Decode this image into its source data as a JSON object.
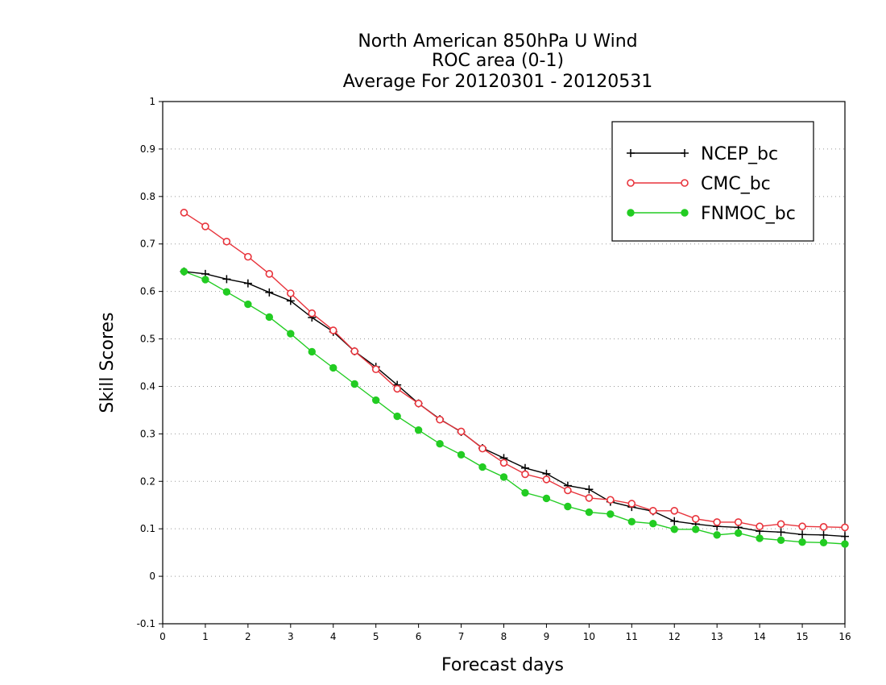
{
  "chart_data": {
    "type": "line",
    "title": [
      "North American 850hPa U Wind",
      "ROC area (0-1)",
      "Average For 20120301 - 20120531"
    ],
    "xlabel": "Forecast days",
    "ylabel": "Skill Scores",
    "xlim": [
      0,
      16
    ],
    "ylim": [
      -0.1,
      1
    ],
    "x_ticks": [
      0,
      1,
      2,
      3,
      4,
      5,
      6,
      7,
      8,
      9,
      10,
      11,
      12,
      13,
      14,
      15,
      16
    ],
    "y_ticks": [
      -0.1,
      0,
      0.1,
      0.2,
      0.3,
      0.4,
      0.5,
      0.6,
      0.7,
      0.8,
      0.9,
      1
    ],
    "y_tick_labels": [
      "-0.1",
      "0",
      "0.1",
      "0.2",
      "0.3",
      "0.4",
      "0.5",
      "0.6",
      "0.7",
      "0.8",
      "0.9",
      "1"
    ],
    "grid": "horizontal dotted",
    "legend_position": "top-right",
    "x": [
      0.5,
      1,
      1.5,
      2,
      2.5,
      3,
      3.5,
      4,
      4.5,
      5,
      5.5,
      6,
      6.5,
      7,
      7.5,
      8,
      8.5,
      9,
      9.5,
      10,
      10.5,
      11,
      11.5,
      12,
      12.5,
      13,
      13.5,
      14,
      14.5,
      15,
      15.5,
      16
    ],
    "series": [
      {
        "name": "NCEP_bc",
        "color": "#000000",
        "marker": "plus",
        "values": [
          0.642,
          0.637,
          0.626,
          0.617,
          0.598,
          0.58,
          0.545,
          0.515,
          0.474,
          0.441,
          0.403,
          0.364,
          0.331,
          0.304,
          0.27,
          0.249,
          0.228,
          0.216,
          0.191,
          0.183,
          0.157,
          0.146,
          0.137,
          0.116,
          0.11,
          0.105,
          0.103,
          0.095,
          0.093,
          0.088,
          0.087,
          0.084
        ]
      },
      {
        "name": "CMC_bc",
        "color": "#e8343c",
        "marker": "open-circle",
        "values": [
          0.766,
          0.737,
          0.705,
          0.673,
          0.637,
          0.596,
          0.554,
          0.518,
          0.474,
          0.436,
          0.395,
          0.364,
          0.33,
          0.305,
          0.269,
          0.239,
          0.215,
          0.204,
          0.181,
          0.165,
          0.161,
          0.153,
          0.138,
          0.138,
          0.121,
          0.114,
          0.114,
          0.105,
          0.11,
          0.105,
          0.104,
          0.103
        ]
      },
      {
        "name": "FNMOC_bc",
        "color": "#22cc22",
        "marker": "filled-circle",
        "values": [
          0.642,
          0.625,
          0.599,
          0.573,
          0.546,
          0.511,
          0.473,
          0.439,
          0.405,
          0.371,
          0.337,
          0.308,
          0.279,
          0.256,
          0.23,
          0.209,
          0.176,
          0.164,
          0.147,
          0.135,
          0.131,
          0.115,
          0.111,
          0.099,
          0.099,
          0.087,
          0.091,
          0.08,
          0.076,
          0.072,
          0.071,
          0.068
        ]
      }
    ]
  }
}
